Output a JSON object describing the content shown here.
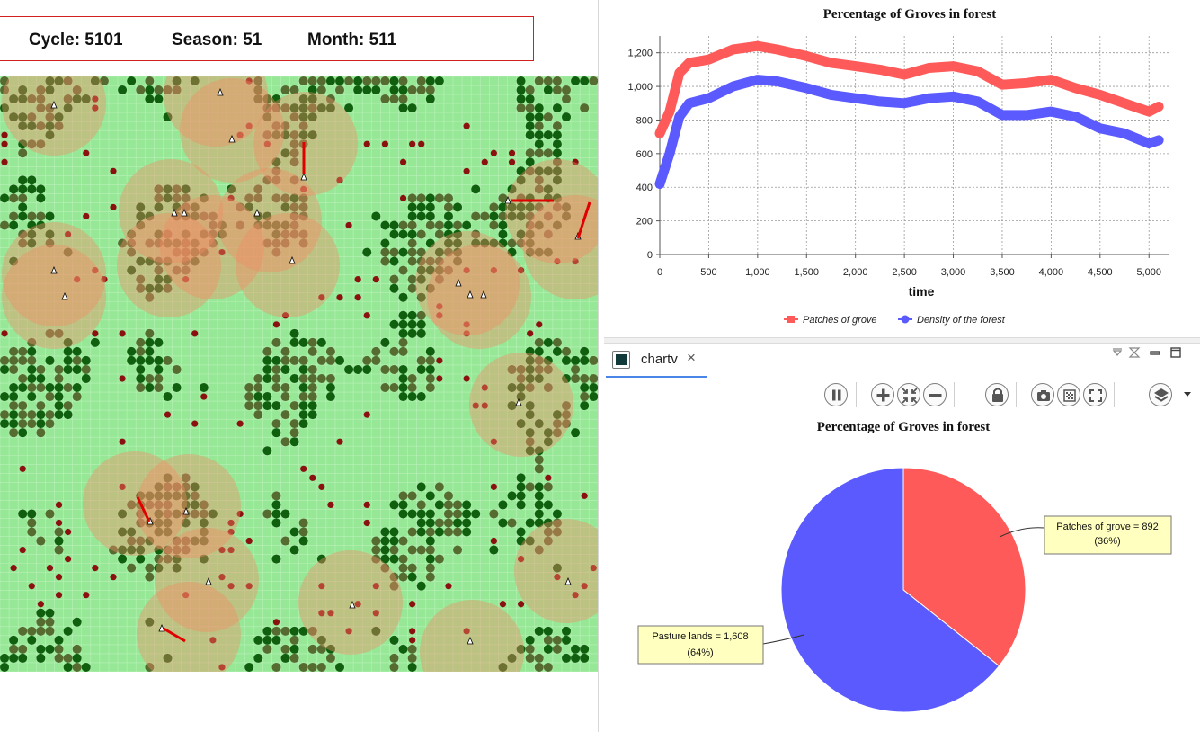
{
  "status": {
    "cycle": "Cycle: 5101",
    "season": "Season: 51",
    "month": "Month: 511"
  },
  "line_chart": {
    "title": "Percentage of Groves in forest",
    "xlabel": "time",
    "y_ticks": [
      "0",
      "200",
      "400",
      "600",
      "800",
      "1,000",
      "1,200"
    ],
    "x_ticks": [
      "0",
      "500",
      "1,000",
      "1,500",
      "2,000",
      "2,500",
      "3,000",
      "3,500",
      "4,000",
      "4,500",
      "5,000"
    ],
    "legend": [
      "Patches of grove",
      "Density of the forest"
    ]
  },
  "tab": {
    "label": "chartv",
    "close": "×"
  },
  "toolbar": {
    "buttons": [
      "pause-icon",
      "zoom-in-icon",
      "fit-icon",
      "zoom-out-icon",
      "lock-icon",
      "camera-icon",
      "texture-icon",
      "fullscreen-icon",
      "layers-icon"
    ]
  },
  "pie_chart": {
    "title": "Percentage of Groves in forest",
    "label_grove_1": "Patches of grove = 892",
    "label_grove_2": "(36%)",
    "label_pasture_1": "Pasture lands = 1,608",
    "label_pasture_2": "(64%)"
  },
  "colors": {
    "grove_red": "#ff5a5a",
    "forest_blue": "#5a5aff",
    "grass_green": "#96e896",
    "tree_dark": "#0f5f0f",
    "tree_olive": "#556b2f",
    "burnt_red": "#8b1010"
  },
  "chart_data": [
    {
      "type": "line",
      "title": "Percentage of Groves in forest",
      "xlabel": "time",
      "ylabel": "",
      "xlim": [
        0,
        5200
      ],
      "ylim": [
        0,
        1300
      ],
      "x": [
        0,
        100,
        200,
        300,
        500,
        750,
        1000,
        1200,
        1500,
        1750,
        2000,
        2250,
        2500,
        2750,
        3000,
        3250,
        3500,
        3750,
        4000,
        4250,
        4500,
        4750,
        5000,
        5100
      ],
      "series": [
        {
          "name": "Patches of grove",
          "values": [
            720,
            850,
            1080,
            1140,
            1160,
            1220,
            1240,
            1220,
            1180,
            1140,
            1120,
            1100,
            1070,
            1110,
            1120,
            1090,
            1010,
            1020,
            1040,
            990,
            950,
            900,
            850,
            880
          ]
        },
        {
          "name": "Density of the forest",
          "values": [
            420,
            600,
            820,
            900,
            930,
            1000,
            1040,
            1030,
            990,
            950,
            930,
            910,
            900,
            930,
            940,
            910,
            830,
            830,
            850,
            820,
            750,
            720,
            660,
            680
          ]
        }
      ]
    },
    {
      "type": "pie",
      "title": "Percentage of Groves in forest",
      "categories": [
        "Patches of grove",
        "Pasture lands"
      ],
      "values": [
        892,
        1608
      ],
      "percent": [
        36,
        64
      ]
    }
  ]
}
